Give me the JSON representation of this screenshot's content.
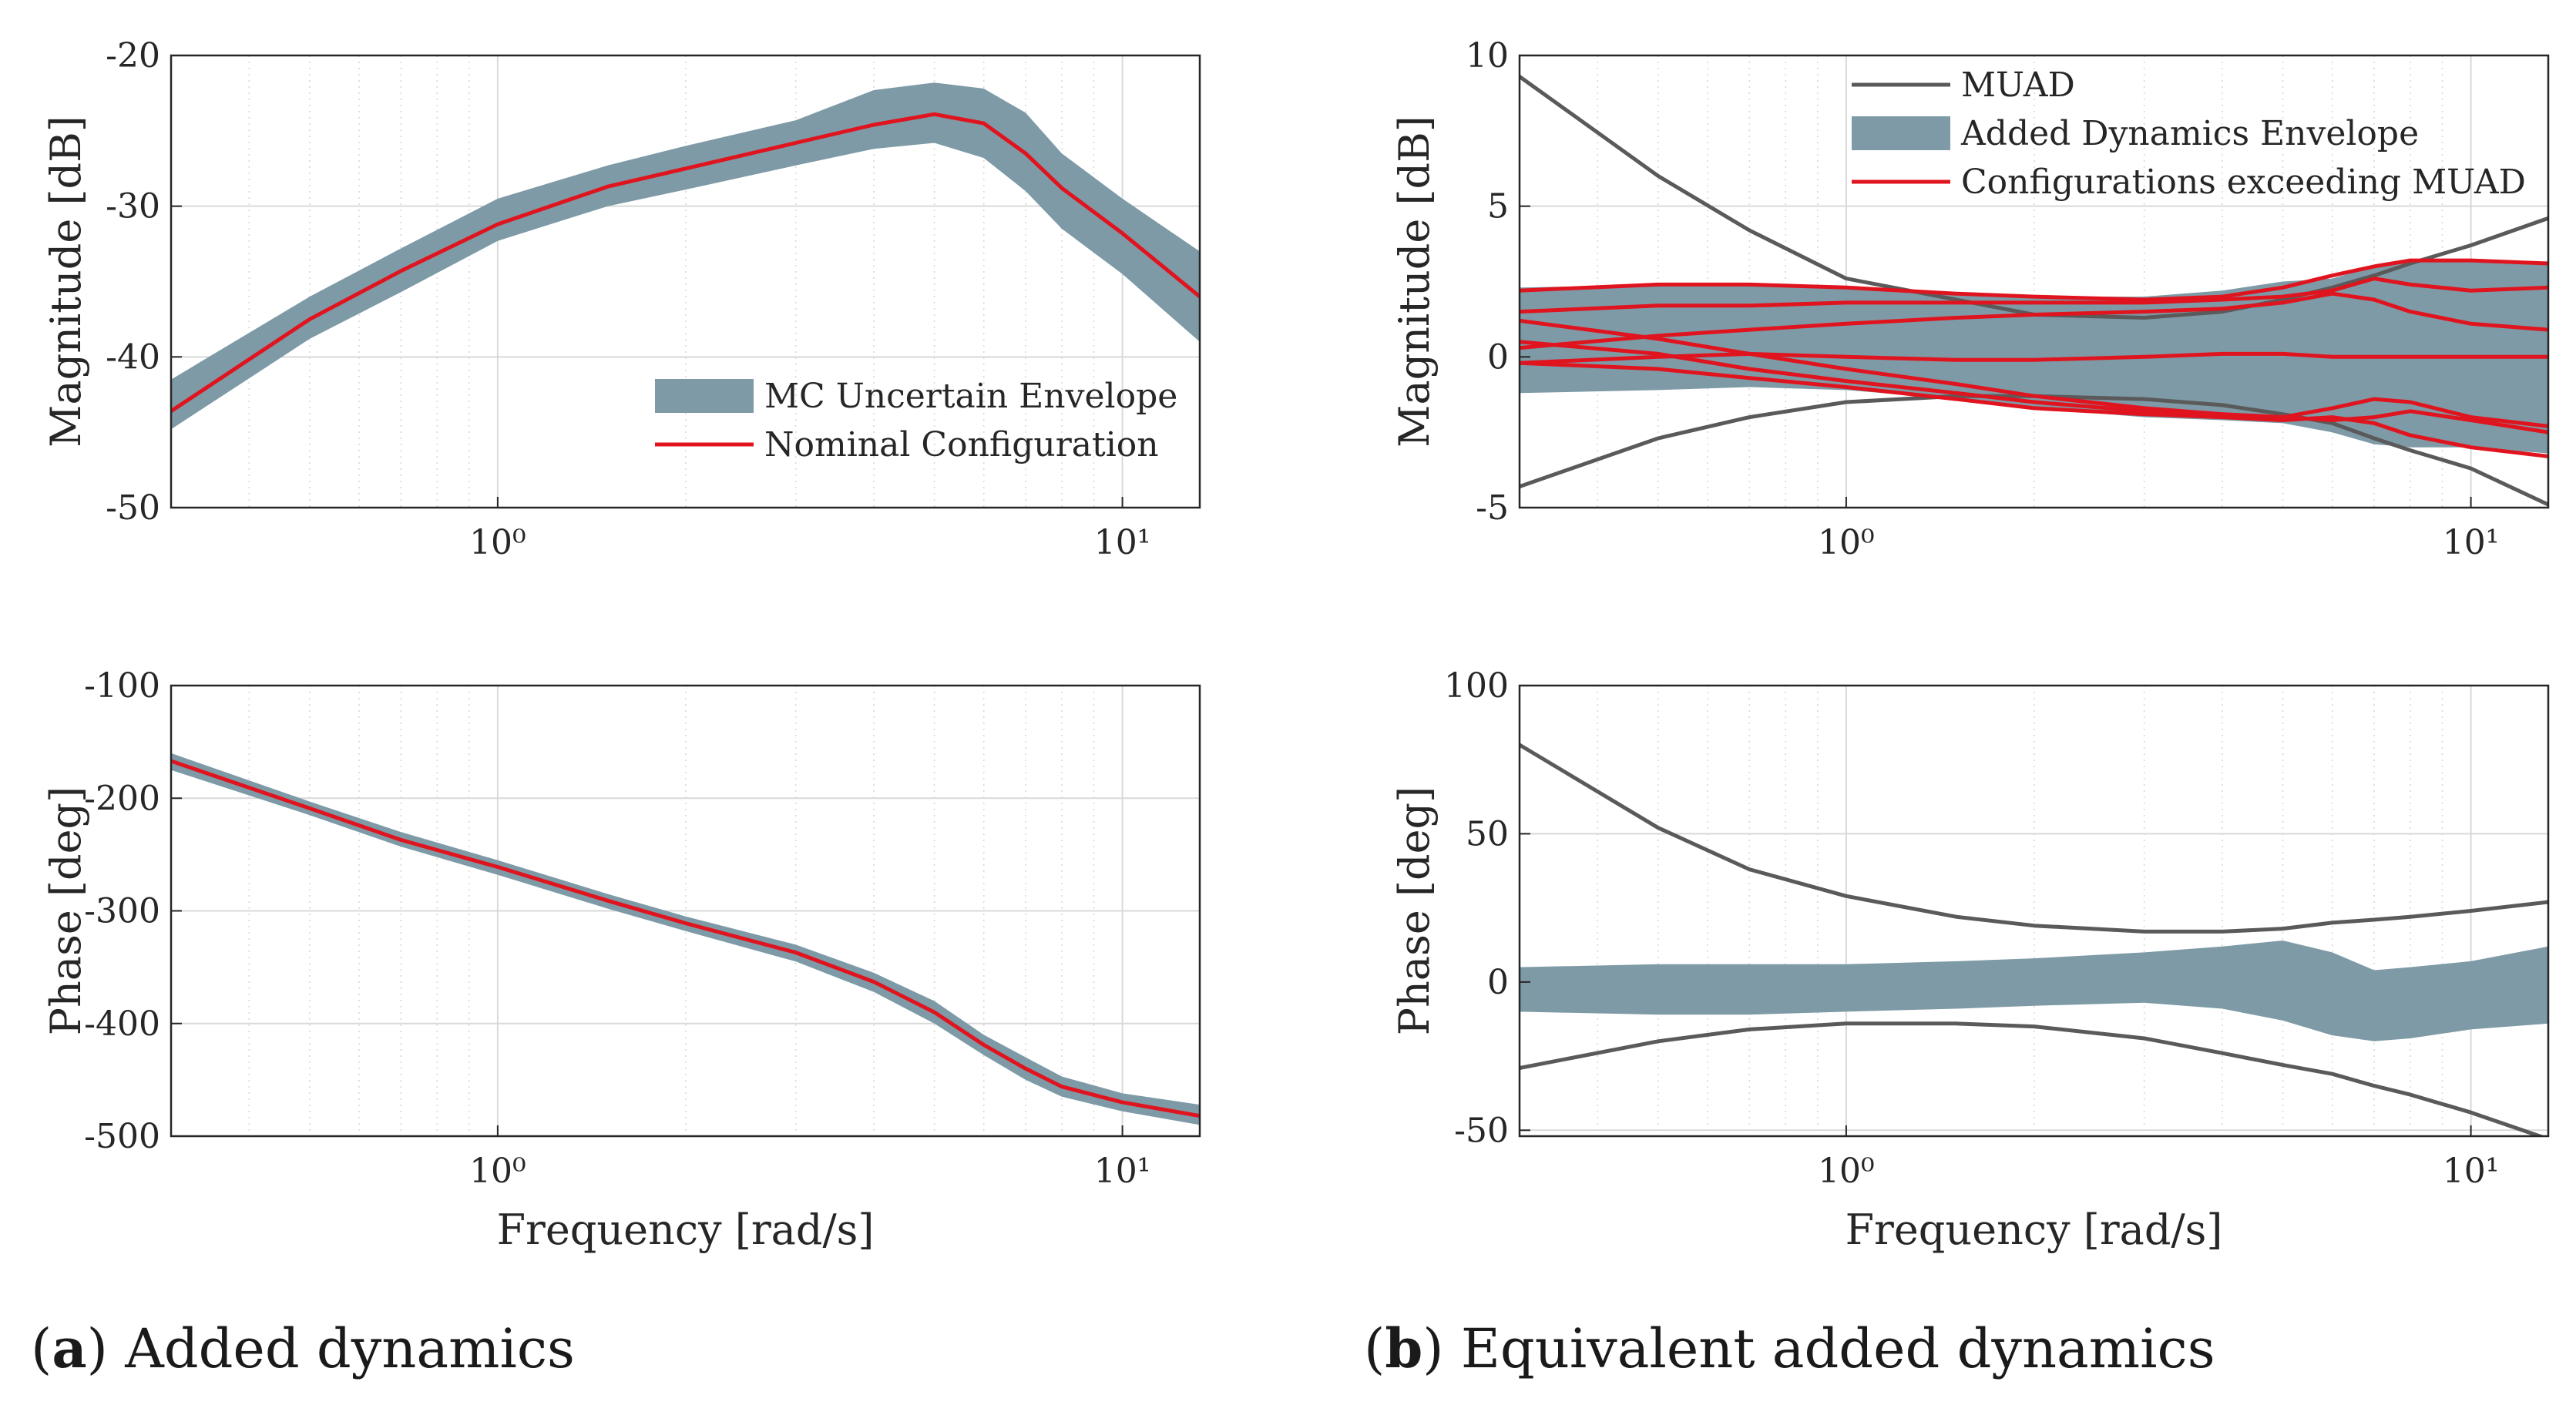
{
  "colors": {
    "envelope": "#7d9aa6",
    "nominal": "#e0141e",
    "muad": "#5a5a5a",
    "grid": "#d9d9d9",
    "axis": "#262626"
  },
  "captions": {
    "a": {
      "tag": "a",
      "text": "Added dynamics"
    },
    "b": {
      "tag": "b",
      "text": "Equivalent added dynamics"
    }
  },
  "chart_data": [
    {
      "id": "a_mag",
      "type": "area",
      "xscale": "log",
      "xlim": [
        0.3,
        13.3
      ],
      "ylim": [
        -50,
        -20
      ],
      "ylabel": "Magnitude [dB]",
      "xlabel": "",
      "yticks": [
        -20,
        -30,
        -40,
        -50
      ],
      "ytick_labels": [
        "-20",
        "-30",
        "-40",
        "-50"
      ],
      "xticks": [
        1,
        10
      ],
      "xtick_labels": [
        "10⁰",
        "10¹"
      ],
      "x": [
        0.3,
        0.5,
        0.7,
        1.0,
        1.5,
        2.0,
        3.0,
        4.0,
        5.0,
        6.0,
        7.0,
        8.0,
        10.0,
        13.3
      ],
      "series": [
        {
          "name": "MC Uncertain Envelope",
          "kind": "band",
          "upper": [
            -41.5,
            -36.0,
            -32.8,
            -29.5,
            -27.3,
            -26.0,
            -24.3,
            -22.3,
            -21.8,
            -22.2,
            -23.8,
            -26.5,
            -29.5,
            -33.0
          ],
          "lower": [
            -44.8,
            -38.8,
            -35.7,
            -32.3,
            -30.0,
            -28.9,
            -27.3,
            -26.2,
            -25.8,
            -26.8,
            -29.0,
            -31.5,
            -34.5,
            -39.0
          ]
        },
        {
          "name": "Nominal Configuration",
          "kind": "line",
          "y": [
            -43.6,
            -37.5,
            -34.3,
            -31.2,
            -28.7,
            -27.5,
            -25.8,
            -24.6,
            -23.9,
            -24.5,
            -26.5,
            -28.8,
            -31.8,
            -36.0
          ]
        }
      ],
      "legend": [
        "MC Uncertain Envelope",
        "Nominal Configuration"
      ],
      "legend_position": "bottom-right"
    },
    {
      "id": "a_phase",
      "type": "area",
      "xscale": "log",
      "xlim": [
        0.3,
        13.3
      ],
      "ylim": [
        -500,
        -100
      ],
      "ylabel": "Phase [deg]",
      "xlabel": "Frequency [rad/s]",
      "yticks": [
        -100,
        -200,
        -300,
        -400,
        -500
      ],
      "ytick_labels": [
        "-100",
        "-200",
        "-300",
        "-400",
        "-500"
      ],
      "xticks": [
        1,
        10
      ],
      "xtick_labels": [
        "10⁰",
        "10¹"
      ],
      "x": [
        0.3,
        0.5,
        0.7,
        1.0,
        1.5,
        2.0,
        3.0,
        4.0,
        5.0,
        6.0,
        7.0,
        8.0,
        10.0,
        13.3
      ],
      "series": [
        {
          "name": "MC Uncertain Envelope",
          "kind": "band",
          "upper": [
            -160,
            -203,
            -230,
            -255,
            -285,
            -305,
            -330,
            -355,
            -380,
            -410,
            -430,
            -447,
            -462,
            -472
          ],
          "lower": [
            -175,
            -215,
            -243,
            -268,
            -298,
            -318,
            -345,
            -372,
            -400,
            -428,
            -450,
            -465,
            -478,
            -490
          ]
        },
        {
          "name": "Nominal Configuration",
          "kind": "line",
          "y": [
            -167,
            -209,
            -237,
            -261,
            -291,
            -311,
            -337,
            -363,
            -390,
            -419,
            -440,
            -456,
            -470,
            -482
          ]
        }
      ]
    },
    {
      "id": "b_mag",
      "type": "line",
      "xscale": "log",
      "xlim": [
        0.3,
        13.3
      ],
      "ylim": [
        -5,
        10
      ],
      "ylabel": "Magnitude [dB]",
      "xlabel": "",
      "yticks": [
        10,
        5,
        0,
        -5
      ],
      "ytick_labels": [
        "10",
        "5",
        "0",
        "-5"
      ],
      "xticks": [
        1,
        10
      ],
      "xtick_labels": [
        "10⁰",
        "10¹"
      ],
      "x": [
        0.3,
        0.5,
        0.7,
        1.0,
        1.5,
        2.0,
        3.0,
        4.0,
        5.0,
        6.0,
        7.0,
        8.0,
        10.0,
        13.3
      ],
      "series": [
        {
          "name": "MUAD",
          "kind": "line",
          "color": "muad",
          "y": [
            9.3,
            6.0,
            4.2,
            2.6,
            1.9,
            1.4,
            1.3,
            1.5,
            1.9,
            2.3,
            2.7,
            3.1,
            3.7,
            4.6
          ]
        },
        {
          "name": "MUAD",
          "kind": "line",
          "color": "muad",
          "y": [
            -4.3,
            -2.7,
            -2.0,
            -1.5,
            -1.3,
            -1.3,
            -1.4,
            -1.6,
            -1.9,
            -2.2,
            -2.7,
            -3.1,
            -3.7,
            -4.9
          ]
        },
        {
          "name": "Added Dynamics Envelope",
          "kind": "band",
          "upper": [
            2.3,
            2.4,
            2.4,
            2.3,
            2.1,
            2.0,
            2.0,
            2.2,
            2.5,
            2.6,
            3.0,
            3.2,
            3.2,
            3.1
          ],
          "lower": [
            -1.2,
            -1.1,
            -1.0,
            -1.1,
            -1.4,
            -1.7,
            -2.0,
            -2.1,
            -2.2,
            -2.5,
            -2.9,
            -3.0,
            -3.0,
            -3.2
          ]
        },
        {
          "name": "Configurations exceeding MUAD",
          "kind": "line",
          "color": "nominal",
          "y": [
            2.2,
            2.4,
            2.4,
            2.3,
            2.1,
            2.0,
            1.9,
            2.0,
            2.3,
            2.7,
            3.0,
            3.2,
            3.2,
            3.1
          ]
        },
        {
          "name": "Configurations exceeding MUAD",
          "kind": "line",
          "color": "nominal",
          "y": [
            1.5,
            1.7,
            1.7,
            1.8,
            1.8,
            1.8,
            1.8,
            1.9,
            2.0,
            2.2,
            2.6,
            2.4,
            2.2,
            2.3
          ]
        },
        {
          "name": "Configurations exceeding MUAD",
          "kind": "line",
          "color": "nominal",
          "y": [
            0.3,
            0.7,
            0.9,
            1.1,
            1.3,
            1.4,
            1.5,
            1.6,
            1.8,
            2.1,
            1.9,
            1.5,
            1.1,
            0.9
          ]
        },
        {
          "name": "Configurations exceeding MUAD",
          "kind": "line",
          "color": "nominal",
          "y": [
            -0.2,
            0.0,
            0.1,
            0.0,
            -0.1,
            -0.1,
            0.0,
            0.1,
            0.1,
            0.0,
            0.0,
            0.0,
            0.0,
            0.0
          ]
        },
        {
          "name": "Configurations exceeding MUAD",
          "kind": "line",
          "color": "nominal",
          "y": [
            1.2,
            0.6,
            0.1,
            -0.4,
            -0.9,
            -1.3,
            -1.7,
            -1.9,
            -2.0,
            -2.1,
            -2.0,
            -1.8,
            -2.1,
            -2.5
          ]
        },
        {
          "name": "Configurations exceeding MUAD",
          "kind": "line",
          "color": "nominal",
          "y": [
            0.5,
            0.1,
            -0.4,
            -0.8,
            -1.2,
            -1.5,
            -1.8,
            -1.9,
            -2.0,
            -1.7,
            -1.4,
            -1.5,
            -2.0,
            -2.3
          ]
        },
        {
          "name": "Configurations exceeding MUAD",
          "kind": "line",
          "color": "nominal",
          "y": [
            -0.2,
            -0.4,
            -0.7,
            -1.0,
            -1.4,
            -1.7,
            -1.9,
            -2.0,
            -2.1,
            -2.0,
            -2.2,
            -2.6,
            -3.0,
            -3.3
          ]
        }
      ],
      "legend": [
        "MUAD",
        "Added Dynamics Envelope",
        "Configurations exceeding MUAD"
      ],
      "legend_position": "top-right"
    },
    {
      "id": "b_phase",
      "type": "line",
      "xscale": "log",
      "xlim": [
        0.3,
        13.3
      ],
      "ylim": [
        -52,
        100
      ],
      "ylabel": "Phase [deg]",
      "xlabel": "Frequency [rad/s]",
      "yticks": [
        100,
        50,
        0,
        -50
      ],
      "ytick_labels": [
        "100",
        "50",
        "0",
        "-50"
      ],
      "xticks": [
        1,
        10
      ],
      "xtick_labels": [
        "10⁰",
        "10¹"
      ],
      "x": [
        0.3,
        0.5,
        0.7,
        1.0,
        1.5,
        2.0,
        3.0,
        4.0,
        5.0,
        6.0,
        7.0,
        8.0,
        10.0,
        13.3
      ],
      "series": [
        {
          "name": "MUAD",
          "kind": "line",
          "color": "muad",
          "y": [
            80,
            52,
            38,
            29,
            22,
            19,
            17,
            17,
            18,
            20,
            21,
            22,
            24,
            27
          ]
        },
        {
          "name": "MUAD",
          "kind": "line",
          "color": "muad",
          "y": [
            -29,
            -20,
            -16,
            -14,
            -14,
            -15,
            -19,
            -24,
            -28,
            -31,
            -35,
            -38,
            -44,
            -53
          ]
        },
        {
          "name": "Added Dynamics Envelope",
          "kind": "band",
          "upper": [
            5,
            6,
            6,
            6,
            7,
            8,
            10,
            12,
            14,
            10,
            4,
            5,
            7,
            12
          ],
          "lower": [
            -10,
            -11,
            -11,
            -10,
            -9,
            -8,
            -7,
            -9,
            -13,
            -18,
            -20,
            -19,
            -16,
            -14
          ]
        }
      ]
    }
  ]
}
